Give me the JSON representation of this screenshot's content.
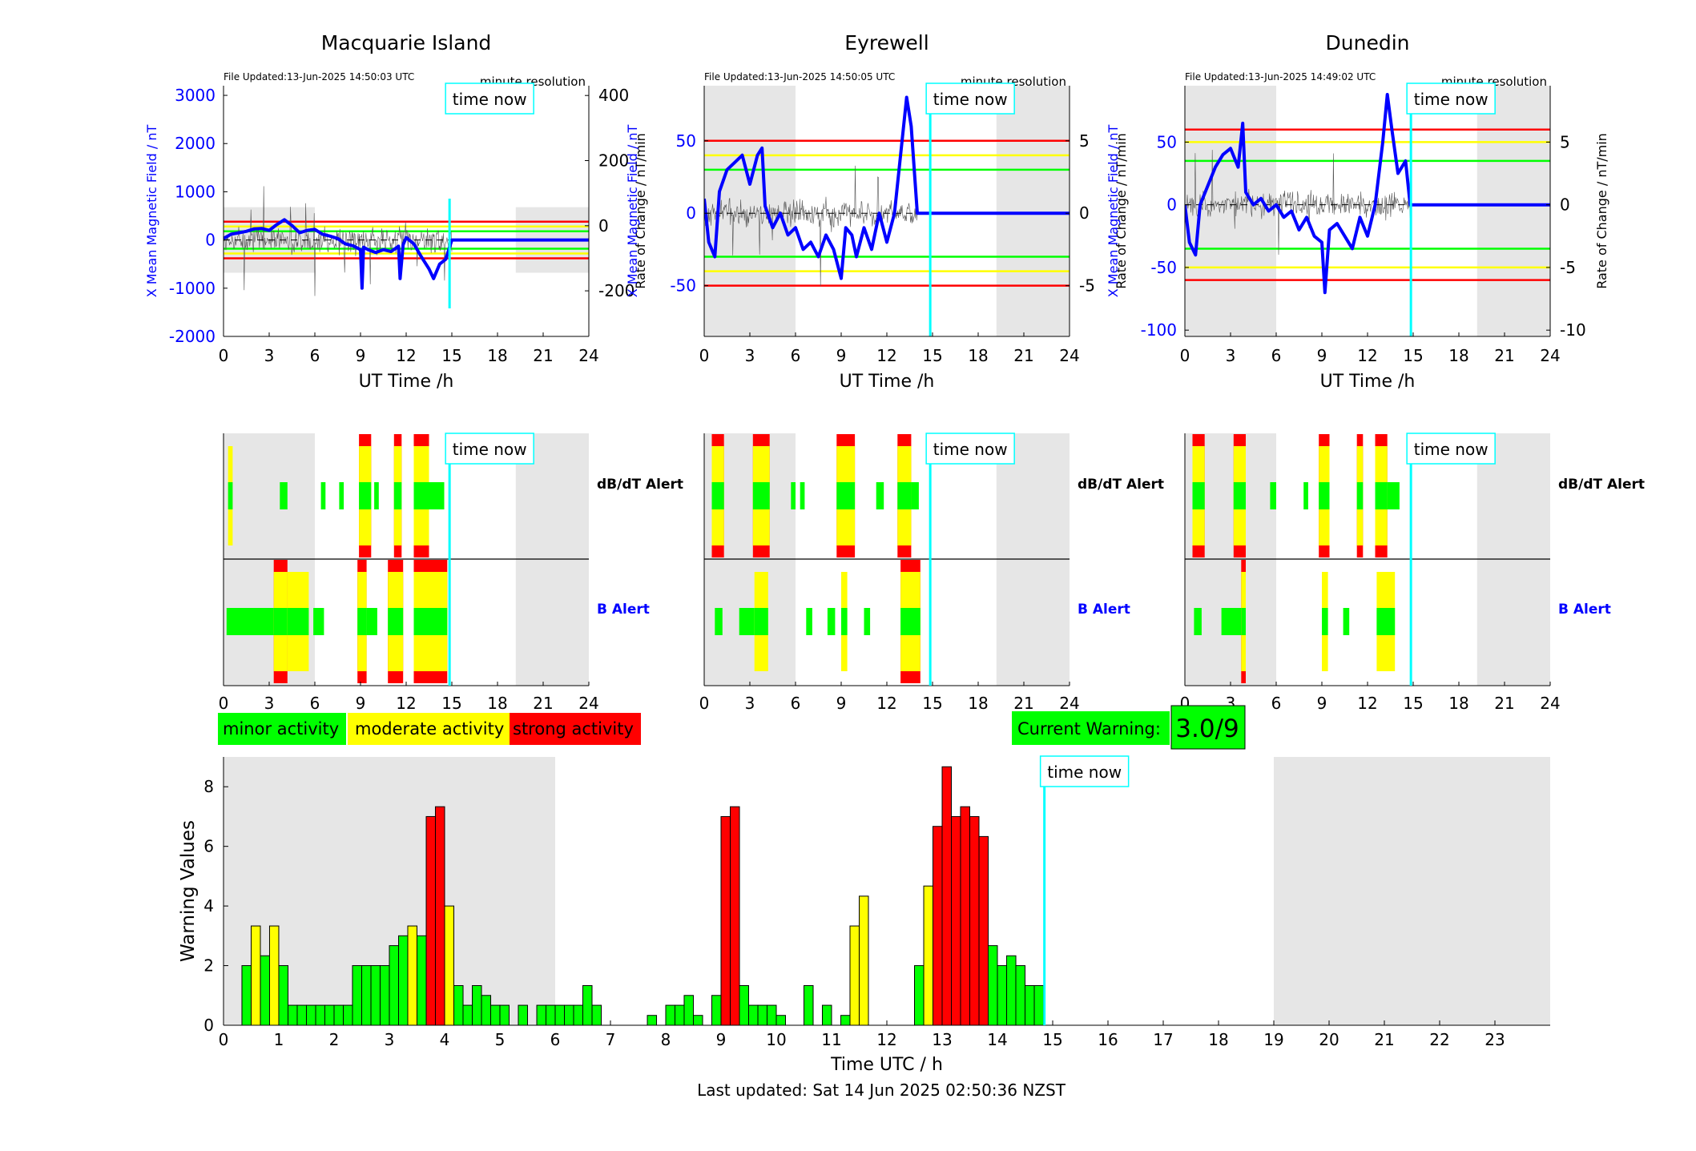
{
  "stations": [
    {
      "name": "Macquarie Island",
      "file_updated": "File Updated:13-Jun-2025 14:50:03 UTC",
      "resolution": "minute resolution",
      "time_now_label": "time now",
      "ylabel_left": "X Mean Magnetic Field / nT",
      "ylabel_right": "Rate of Change / nT/min",
      "xlabel": "UT Time /h",
      "left_ticks": [
        3000,
        2000,
        1000,
        0,
        -1000,
        -2000
      ],
      "right_ticks": [
        400,
        200,
        0,
        -200
      ],
      "left_ylim": [
        -2000,
        3200
      ],
      "right_ylim": [
        -340,
        430
      ],
      "levels": {
        "green": 180,
        "yellow": 280,
        "red": 380
      },
      "shade_ylim": [
        -680,
        680
      ],
      "field_trace": [
        [
          0.0,
          30
        ],
        [
          0.5,
          120
        ],
        [
          1.0,
          150
        ],
        [
          1.5,
          180
        ],
        [
          2.0,
          230
        ],
        [
          2.5,
          240
        ],
        [
          3.0,
          200
        ],
        [
          3.5,
          320
        ],
        [
          4.0,
          420
        ],
        [
          4.5,
          300
        ],
        [
          5.0,
          150
        ],
        [
          5.5,
          200
        ],
        [
          6.0,
          220
        ],
        [
          6.5,
          120
        ],
        [
          7.0,
          80
        ],
        [
          7.5,
          30
        ],
        [
          8.0,
          -80
        ],
        [
          8.5,
          -120
        ],
        [
          9.0,
          -200
        ],
        [
          9.1,
          -1000
        ],
        [
          9.2,
          -150
        ],
        [
          9.5,
          -200
        ],
        [
          10.0,
          -260
        ],
        [
          10.5,
          -200
        ],
        [
          11.0,
          -240
        ],
        [
          11.5,
          -130
        ],
        [
          11.6,
          -800
        ],
        [
          11.8,
          -100
        ],
        [
          12.0,
          50
        ],
        [
          12.5,
          -80
        ],
        [
          13.0,
          -350
        ],
        [
          13.5,
          -600
        ],
        [
          13.8,
          -800
        ],
        [
          14.2,
          -500
        ],
        [
          14.6,
          -400
        ],
        [
          15.0,
          0
        ],
        [
          24.0,
          0
        ]
      ],
      "trace_end": 15.0,
      "dbdt_alerts": [
        [
          0.3,
          0.6,
          "y"
        ],
        [
          3.7,
          4.2,
          "g"
        ],
        [
          6.4,
          6.7,
          "g"
        ],
        [
          7.6,
          7.9,
          "g"
        ],
        [
          8.9,
          9.7,
          "r"
        ],
        [
          9.9,
          10.2,
          "g"
        ],
        [
          11.2,
          11.7,
          "r"
        ],
        [
          12.5,
          13.5,
          "r"
        ],
        [
          13.5,
          14.5,
          "g"
        ]
      ],
      "b_alerts": [
        [
          0.2,
          3.3,
          "g"
        ],
        [
          3.3,
          4.2,
          "r"
        ],
        [
          4.2,
          5.6,
          "y"
        ],
        [
          5.9,
          6.6,
          "g"
        ],
        [
          8.8,
          9.4,
          "r"
        ],
        [
          9.4,
          10.1,
          "g"
        ],
        [
          10.8,
          11.8,
          "r"
        ],
        [
          12.5,
          14.7,
          "r"
        ]
      ]
    },
    {
      "name": "Eyrewell",
      "file_updated": "File Updated:13-Jun-2025 14:50:05 UTC",
      "resolution": "minute resolution",
      "time_now_label": "time now",
      "ylabel_left": "X Mean Magnetic Field / nT",
      "ylabel_right": "Rate of Change / nT/min",
      "xlabel": "UT Time /h",
      "left_ticks": [
        50,
        0,
        -50
      ],
      "right_ticks": [
        5,
        0,
        -5
      ],
      "left_ylim": [
        -85,
        88
      ],
      "right_ylim": [
        -8.5,
        8.8
      ],
      "levels": {
        "green": 30,
        "yellow": 40,
        "red": 50
      },
      "shade_ylim": [
        -85,
        88
      ],
      "field_trace": [
        [
          0.0,
          10
        ],
        [
          0.3,
          -20
        ],
        [
          0.7,
          -30
        ],
        [
          1.0,
          15
        ],
        [
          1.5,
          30
        ],
        [
          2.0,
          35
        ],
        [
          2.5,
          40
        ],
        [
          3.0,
          20
        ],
        [
          3.5,
          40
        ],
        [
          3.8,
          45
        ],
        [
          4.0,
          5
        ],
        [
          4.5,
          -10
        ],
        [
          5.0,
          0
        ],
        [
          5.5,
          -15
        ],
        [
          6.0,
          -10
        ],
        [
          6.5,
          -25
        ],
        [
          7.0,
          -20
        ],
        [
          7.5,
          -30
        ],
        [
          8.0,
          -15
        ],
        [
          8.5,
          -25
        ],
        [
          9.0,
          -45
        ],
        [
          9.3,
          -10
        ],
        [
          9.7,
          -15
        ],
        [
          10.0,
          -30
        ],
        [
          10.5,
          -10
        ],
        [
          11.0,
          -25
        ],
        [
          11.5,
          0
        ],
        [
          12.0,
          -20
        ],
        [
          12.5,
          0
        ],
        [
          13.0,
          50
        ],
        [
          13.3,
          80
        ],
        [
          13.6,
          60
        ],
        [
          14.0,
          0
        ],
        [
          24.0,
          0
        ]
      ],
      "trace_end": 14.0,
      "dbdt_alerts": [
        [
          0.5,
          1.3,
          "r"
        ],
        [
          3.2,
          4.3,
          "r"
        ],
        [
          5.7,
          6.0,
          "g"
        ],
        [
          6.3,
          6.6,
          "g"
        ],
        [
          8.7,
          9.9,
          "r"
        ],
        [
          11.3,
          11.8,
          "g"
        ],
        [
          12.7,
          13.6,
          "r"
        ],
        [
          13.6,
          14.1,
          "g"
        ]
      ],
      "b_alerts": [
        [
          0.7,
          1.2,
          "g"
        ],
        [
          2.3,
          3.3,
          "g"
        ],
        [
          3.3,
          4.2,
          "y"
        ],
        [
          6.7,
          7.1,
          "g"
        ],
        [
          8.1,
          8.6,
          "g"
        ],
        [
          9.0,
          9.4,
          "y"
        ],
        [
          10.5,
          10.9,
          "g"
        ],
        [
          12.9,
          14.2,
          "r"
        ]
      ]
    },
    {
      "name": "Dunedin",
      "file_updated": "File Updated:13-Jun-2025 14:49:02 UTC",
      "resolution": "minute resolution",
      "time_now_label": "time now",
      "ylabel_left": "X Mean Magnetic Field / nT",
      "ylabel_right": "Rate of Change / nT/min",
      "xlabel": "UT Time /h",
      "left_ticks": [
        50,
        0,
        -50,
        -100
      ],
      "right_ticks": [
        5,
        0,
        -5,
        -10
      ],
      "left_ylim": [
        -105,
        95
      ],
      "right_ylim": [
        -10.5,
        9.5
      ],
      "levels": {
        "green": 35,
        "yellow": 50,
        "red": 60
      },
      "shade_ylim": [
        -105,
        95
      ],
      "field_trace": [
        [
          0.0,
          0
        ],
        [
          0.3,
          -30
        ],
        [
          0.7,
          -40
        ],
        [
          1.0,
          0
        ],
        [
          1.5,
          15
        ],
        [
          2.0,
          30
        ],
        [
          2.5,
          40
        ],
        [
          3.0,
          45
        ],
        [
          3.5,
          30
        ],
        [
          3.8,
          65
        ],
        [
          4.0,
          10
        ],
        [
          4.5,
          0
        ],
        [
          5.0,
          5
        ],
        [
          5.5,
          -5
        ],
        [
          6.0,
          0
        ],
        [
          6.5,
          -10
        ],
        [
          7.0,
          -5
        ],
        [
          7.5,
          -20
        ],
        [
          8.0,
          -10
        ],
        [
          8.5,
          -25
        ],
        [
          9.0,
          -30
        ],
        [
          9.2,
          -70
        ],
        [
          9.5,
          -20
        ],
        [
          10.0,
          -15
        ],
        [
          10.5,
          -25
        ],
        [
          11.0,
          -35
        ],
        [
          11.5,
          -10
        ],
        [
          12.0,
          -25
        ],
        [
          12.5,
          0
        ],
        [
          13.0,
          50
        ],
        [
          13.3,
          88
        ],
        [
          13.6,
          60
        ],
        [
          14.0,
          25
        ],
        [
          14.5,
          35
        ],
        [
          14.8,
          0
        ],
        [
          24.0,
          0
        ]
      ],
      "trace_end": 14.8,
      "dbdt_alerts": [
        [
          0.5,
          1.3,
          "r"
        ],
        [
          3.2,
          4.0,
          "r"
        ],
        [
          5.6,
          6.0,
          "g"
        ],
        [
          7.8,
          8.1,
          "g"
        ],
        [
          8.8,
          9.5,
          "r"
        ],
        [
          11.3,
          11.7,
          "r"
        ],
        [
          12.5,
          13.3,
          "r"
        ],
        [
          13.3,
          14.1,
          "g"
        ]
      ],
      "b_alerts": [
        [
          0.6,
          1.1,
          "g"
        ],
        [
          2.4,
          3.7,
          "g"
        ],
        [
          3.7,
          4.0,
          "r"
        ],
        [
          9.0,
          9.4,
          "y"
        ],
        [
          10.4,
          10.8,
          "g"
        ],
        [
          12.6,
          13.8,
          "y"
        ]
      ]
    }
  ],
  "alert_labels": {
    "dbdt": "dB/dT Alert",
    "b": "B Alert"
  },
  "x_ticks": [
    0,
    3,
    6,
    9,
    12,
    15,
    18,
    21,
    24
  ],
  "shaded_hours": [
    [
      0,
      6
    ],
    [
      19.2,
      24
    ]
  ],
  "time_now_hour": 14.85,
  "legend": [
    {
      "label": "minor activity",
      "color": "#00ff00"
    },
    {
      "label": "moderate activity",
      "color": "#ffff00"
    },
    {
      "label": "strong activity",
      "color": "#ff0000"
    }
  ],
  "current_warning": {
    "label": "Current Warning:",
    "value": "3.0/9"
  },
  "colors": {
    "green": "#00ff00",
    "yellow": "#ffff00",
    "red": "#ff0000",
    "cyan": "#00ffff",
    "blue": "#0000ff",
    "shade": "#e6e6e6"
  },
  "chart_data": {
    "type": "bar",
    "ylabel": "Warning Values",
    "xlabel": "Time UTC / h",
    "xlim": [
      0,
      24
    ],
    "ylim": [
      0,
      9
    ],
    "x_ticks": [
      0,
      1,
      2,
      3,
      4,
      5,
      6,
      7,
      8,
      9,
      10,
      11,
      12,
      13,
      14,
      15,
      16,
      17,
      18,
      19,
      20,
      21,
      22,
      23
    ],
    "y_ticks": [
      0,
      2,
      4,
      6,
      8
    ],
    "shaded_hours": [
      [
        0,
        6
      ],
      [
        19,
        24
      ]
    ],
    "bar_width_h": 0.1667,
    "time_now_label": "time now",
    "bars": [
      [
        0.333,
        2.0,
        "g"
      ],
      [
        0.5,
        3.33,
        "y"
      ],
      [
        0.667,
        2.33,
        "g"
      ],
      [
        0.833,
        3.33,
        "y"
      ],
      [
        1.0,
        2.0,
        "g"
      ],
      [
        1.167,
        0.67,
        "g"
      ],
      [
        1.333,
        0.67,
        "g"
      ],
      [
        1.5,
        0.67,
        "g"
      ],
      [
        1.667,
        0.67,
        "g"
      ],
      [
        1.833,
        0.67,
        "g"
      ],
      [
        2.0,
        0.67,
        "g"
      ],
      [
        2.167,
        0.67,
        "g"
      ],
      [
        2.333,
        2.0,
        "g"
      ],
      [
        2.5,
        2.0,
        "g"
      ],
      [
        2.667,
        2.0,
        "g"
      ],
      [
        2.833,
        2.0,
        "g"
      ],
      [
        3.0,
        2.67,
        "g"
      ],
      [
        3.167,
        3.0,
        "g"
      ],
      [
        3.333,
        3.33,
        "y"
      ],
      [
        3.5,
        3.0,
        "g"
      ],
      [
        3.667,
        7.0,
        "r"
      ],
      [
        3.833,
        7.33,
        "r"
      ],
      [
        4.0,
        4.0,
        "y"
      ],
      [
        4.167,
        1.33,
        "g"
      ],
      [
        4.333,
        0.67,
        "g"
      ],
      [
        4.5,
        1.33,
        "g"
      ],
      [
        4.667,
        1.0,
        "g"
      ],
      [
        4.833,
        0.67,
        "g"
      ],
      [
        5.0,
        0.67,
        "g"
      ],
      [
        5.333,
        0.67,
        "g"
      ],
      [
        5.667,
        0.67,
        "g"
      ],
      [
        5.833,
        0.67,
        "g"
      ],
      [
        6.0,
        0.67,
        "g"
      ],
      [
        6.167,
        0.67,
        "g"
      ],
      [
        6.333,
        0.67,
        "g"
      ],
      [
        6.5,
        1.33,
        "g"
      ],
      [
        6.667,
        0.67,
        "g"
      ],
      [
        7.667,
        0.33,
        "g"
      ],
      [
        8.0,
        0.67,
        "g"
      ],
      [
        8.167,
        0.67,
        "g"
      ],
      [
        8.333,
        1.0,
        "g"
      ],
      [
        8.5,
        0.33,
        "g"
      ],
      [
        8.833,
        1.0,
        "g"
      ],
      [
        9.0,
        7.0,
        "r"
      ],
      [
        9.167,
        7.33,
        "r"
      ],
      [
        9.333,
        1.33,
        "g"
      ],
      [
        9.5,
        0.67,
        "g"
      ],
      [
        9.667,
        0.67,
        "g"
      ],
      [
        9.833,
        0.67,
        "g"
      ],
      [
        10.0,
        0.33,
        "g"
      ],
      [
        10.5,
        1.33,
        "g"
      ],
      [
        10.833,
        0.67,
        "g"
      ],
      [
        11.167,
        0.33,
        "g"
      ],
      [
        11.333,
        3.33,
        "y"
      ],
      [
        11.5,
        4.33,
        "y"
      ],
      [
        12.5,
        2.0,
        "g"
      ],
      [
        12.667,
        4.67,
        "y"
      ],
      [
        12.833,
        6.67,
        "r"
      ],
      [
        13.0,
        8.67,
        "r"
      ],
      [
        13.167,
        7.0,
        "r"
      ],
      [
        13.333,
        7.33,
        "r"
      ],
      [
        13.5,
        7.0,
        "r"
      ],
      [
        13.667,
        6.33,
        "r"
      ],
      [
        13.833,
        2.67,
        "g"
      ],
      [
        14.0,
        2.0,
        "g"
      ],
      [
        14.167,
        2.33,
        "g"
      ],
      [
        14.333,
        2.0,
        "g"
      ],
      [
        14.5,
        1.33,
        "g"
      ],
      [
        14.667,
        1.33,
        "g"
      ]
    ]
  },
  "last_updated": "Last updated: Sat 14 Jun 2025 02:50:36 NZST"
}
